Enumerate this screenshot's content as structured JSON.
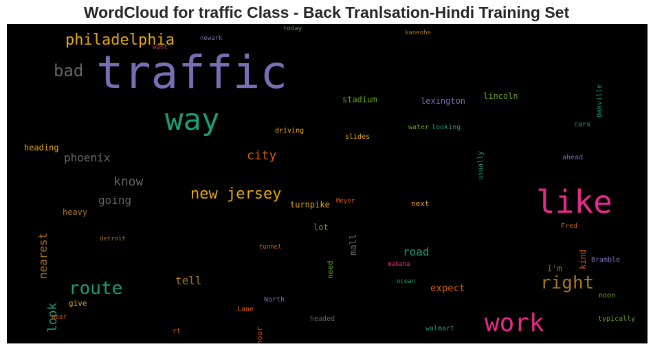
{
  "chart_data": {
    "type": "wordcloud",
    "title": "WordCloud for traffic Class - Back Tranlsation-Hindi Training Set",
    "background": "#000000",
    "words": [
      {
        "text": "traffic",
        "color": "#7570b3"
      },
      {
        "text": "way",
        "color": "#1b9e77"
      },
      {
        "text": "like",
        "color": "#e7298a"
      },
      {
        "text": "work",
        "color": "#e7298a"
      },
      {
        "text": "philadelphia",
        "color": "#e6ab02"
      },
      {
        "text": "bad",
        "color": "#666666"
      },
      {
        "text": "route",
        "color": "#1b9e77"
      },
      {
        "text": "right",
        "color": "#a6761d"
      },
      {
        "text": "new jersey",
        "color": "#e6ab02"
      },
      {
        "text": "city",
        "color": "#d95f02"
      },
      {
        "text": "know",
        "color": "#666666"
      },
      {
        "text": "phoenix",
        "color": "#666666"
      },
      {
        "text": "going",
        "color": "#666666"
      },
      {
        "text": "look",
        "color": "#1b9e77"
      },
      {
        "text": "nearest",
        "color": "#a6761d"
      },
      {
        "text": "road",
        "color": "#1b9e77"
      },
      {
        "text": "tell",
        "color": "#a6761d"
      },
      {
        "text": "expect",
        "color": "#d95f02"
      },
      {
        "text": "stadium",
        "color": "#66a61e"
      },
      {
        "text": "lexington",
        "color": "#7570b3"
      },
      {
        "text": "lincoln",
        "color": "#66a61e"
      },
      {
        "text": "turnpike",
        "color": "#e6ab02"
      },
      {
        "text": "mall",
        "color": "#666666"
      },
      {
        "text": "lot",
        "color": "#a6761d"
      },
      {
        "text": "next",
        "color": "#e6ab02"
      },
      {
        "text": "heading",
        "color": "#e6ab02"
      },
      {
        "text": "heavy",
        "color": "#a6761d"
      },
      {
        "text": "need",
        "color": "#66a61e"
      },
      {
        "text": "kind",
        "color": "#d95f02"
      },
      {
        "text": "hour",
        "color": "#d95f02"
      },
      {
        "text": "i'm",
        "color": "#a6761d"
      },
      {
        "text": "give",
        "color": "#e6ab02"
      },
      {
        "text": "driving",
        "color": "#e6ab02"
      },
      {
        "text": "slides",
        "color": "#e6ab02"
      },
      {
        "text": "water",
        "color": "#66a61e"
      },
      {
        "text": "looking",
        "color": "#1b9e77"
      },
      {
        "text": "usually",
        "color": "#1b9e77"
      },
      {
        "text": "cars",
        "color": "#1b9e77"
      },
      {
        "text": "ahead",
        "color": "#7570b3"
      },
      {
        "text": "Oakville",
        "color": "#1b9e77"
      },
      {
        "text": "today",
        "color": "#66a61e"
      },
      {
        "text": "newark",
        "color": "#7570b3"
      },
      {
        "text": "want",
        "color": "#e7298a"
      },
      {
        "text": "kaneohe",
        "color": "#a6761d"
      },
      {
        "text": "detroit",
        "color": "#a6761d"
      },
      {
        "text": "Meyer",
        "color": "#d95f02"
      },
      {
        "text": "tunnel",
        "color": "#d95f02"
      },
      {
        "text": "makaha",
        "color": "#e7298a"
      },
      {
        "text": "ocean",
        "color": "#1b9e77"
      },
      {
        "text": "Fred",
        "color": "#d95f02"
      },
      {
        "text": "Bramble",
        "color": "#7570b3"
      },
      {
        "text": "noon",
        "color": "#66a61e"
      },
      {
        "text": "typically",
        "color": "#66a61e"
      },
      {
        "text": "walmart",
        "color": "#1b9e77"
      },
      {
        "text": "headed",
        "color": "#666666"
      },
      {
        "text": "North",
        "color": "#7570b3"
      },
      {
        "text": "Lane",
        "color": "#d95f02"
      },
      {
        "text": "near",
        "color": "#d95f02"
      },
      {
        "text": "rt",
        "color": "#d95f02"
      }
    ]
  }
}
